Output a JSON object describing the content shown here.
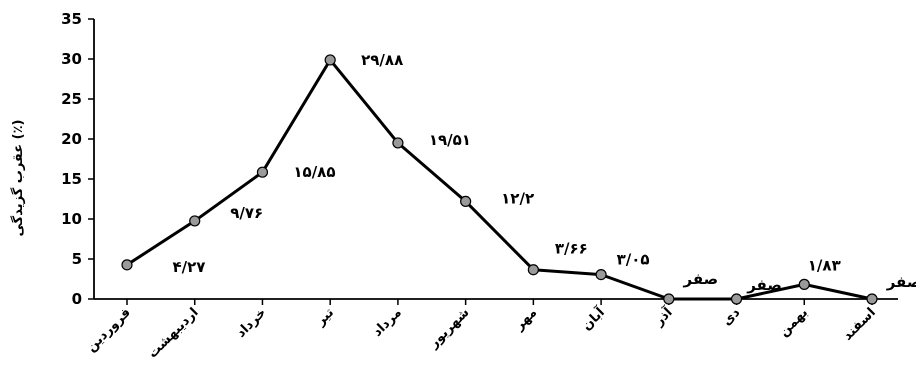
{
  "chart_data": {
    "type": "line",
    "title": "",
    "xlabel": "",
    "ylabel": "عقرب گزیدگی (٪)",
    "ylim": [
      0,
      35
    ],
    "yticks": [
      0,
      5,
      10,
      15,
      20,
      25,
      30,
      35
    ],
    "grid": false,
    "legend": "none",
    "categories": [
      "فروردین",
      "اردیبهشت",
      "خرداد",
      "تیر",
      "مرداد",
      "شهریور",
      "مهر",
      "آبان",
      "آذر",
      "دی",
      "بهمن",
      "اسفند"
    ],
    "series": [
      {
        "values": [
          4.27,
          9.76,
          15.85,
          29.88,
          19.51,
          12.2,
          3.66,
          3.05,
          0,
          0,
          1.83,
          0
        ],
        "labels": [
          "۴/۲۷",
          "۹/۷۶",
          "۱۵/۸۵",
          "۲۹/۸۸",
          "۱۹/۵۱",
          "۱۲/۲",
          "۳/۶۶",
          "۳/۰۵",
          "صفر",
          "صفر",
          "۱/۸۳",
          "صفر"
        ]
      }
    ],
    "colors": {
      "line": "#000000",
      "marker_fill": "#9a9a9a",
      "marker_stroke": "#000000"
    }
  }
}
